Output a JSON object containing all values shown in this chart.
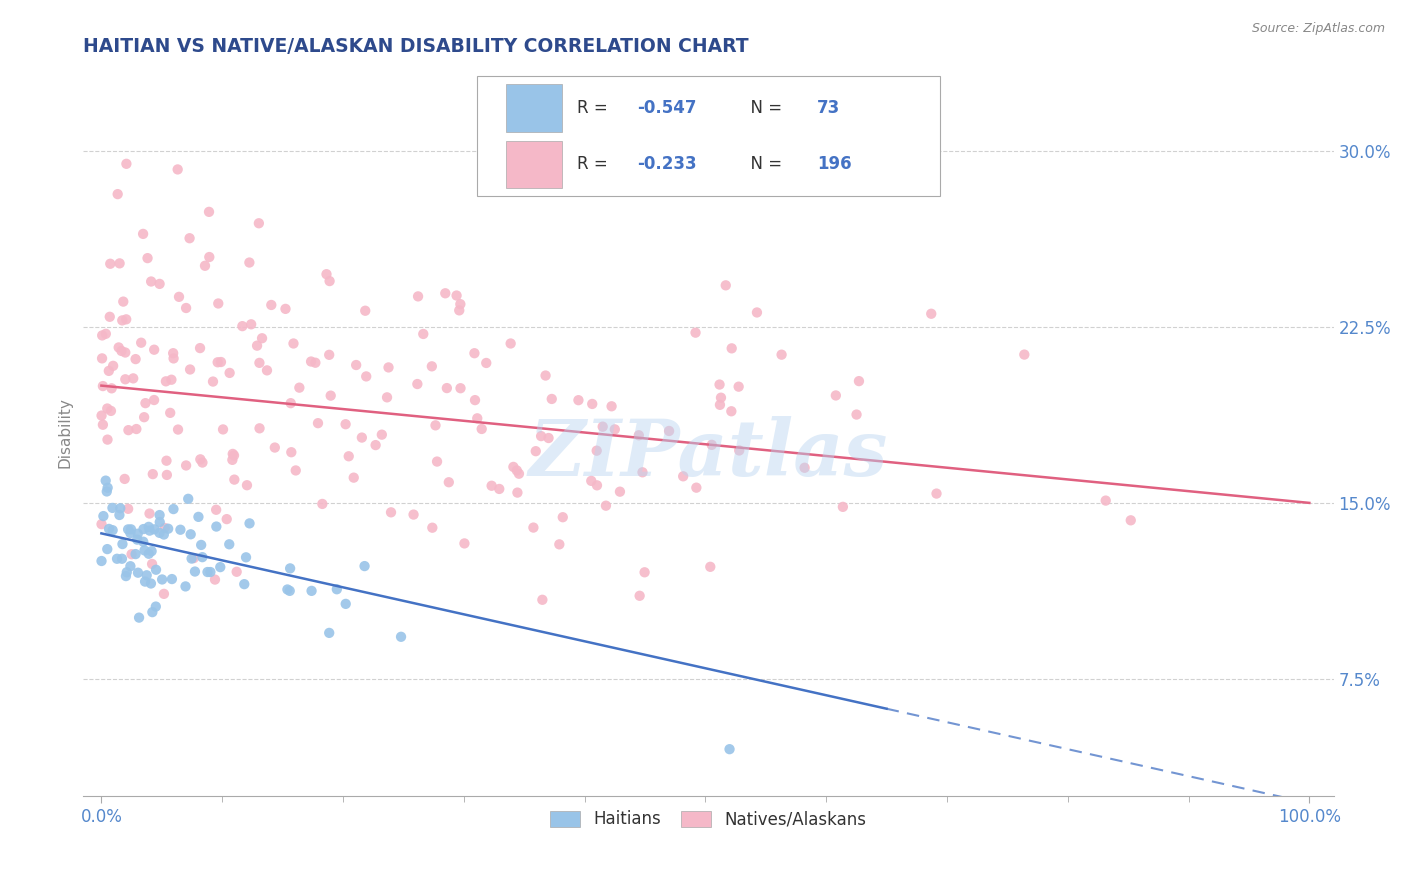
{
  "title": "HAITIAN VS NATIVE/ALASKAN DISABILITY CORRELATION CHART",
  "source": "Source: ZipAtlas.com",
  "ylabel": "Disability",
  "watermark": "ZIPatlas",
  "legend_blue_r": "-0.547",
  "legend_blue_n": "73",
  "legend_pink_r": "-0.233",
  "legend_pink_n": "196",
  "blue_label": "Haitians",
  "pink_label": "Natives/Alaskans",
  "title_color": "#2E4A8C",
  "blue_dot_color": "#99C4E8",
  "pink_dot_color": "#F5B8C8",
  "blue_line_color": "#4472C4",
  "pink_line_color": "#E06080",
  "grid_color": "#CCCCCC",
  "background_color": "#FFFFFF",
  "tick_color": "#5588CC",
  "label_color": "#5588CC"
}
